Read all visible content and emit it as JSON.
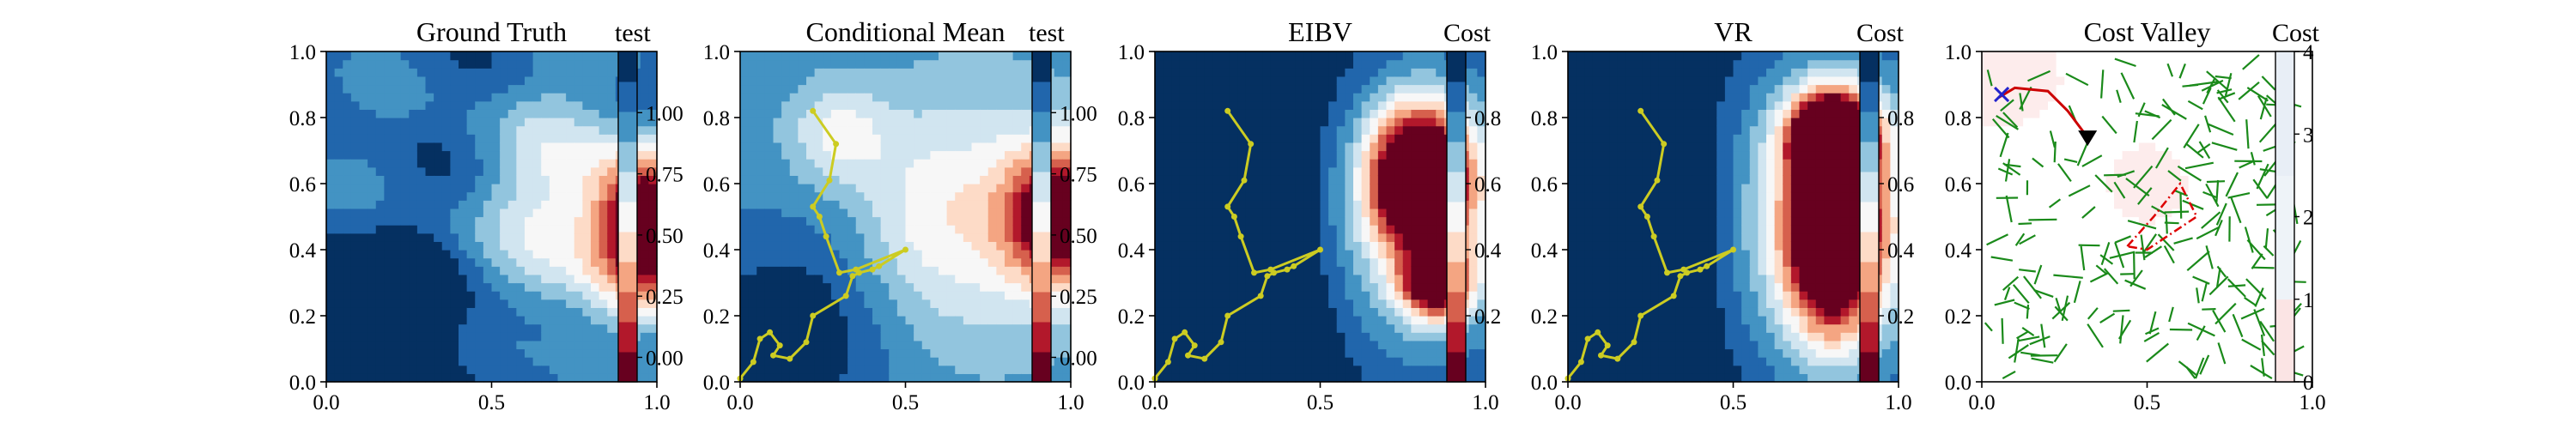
{
  "colors": {
    "cmap_rdbu": [
      "#67001f",
      "#b2182b",
      "#d6604d",
      "#f4a582",
      "#fddbc7",
      "#f7f7f7",
      "#d1e5f0",
      "#92c5de",
      "#4393c3",
      "#2166ac",
      "#053061"
    ],
    "cost_valley_bg": [
      "#ffffff",
      "#fdecec"
    ],
    "path": "#cccc22",
    "tree": "#1a8a1a",
    "route": "#cc0000",
    "boundary": "#dd0000",
    "start_marker": "#2222cc",
    "end_marker": "#000000"
  },
  "chart_data": [
    {
      "type": "heatmap",
      "title": "Ground Truth",
      "colorbar_label": "test",
      "xlim": [
        0,
        1
      ],
      "ylim": [
        0,
        1
      ],
      "x_ticks": [
        "0.0",
        "0.5",
        "1.0"
      ],
      "y_ticks": [
        "0.0",
        "0.2",
        "0.4",
        "0.6",
        "0.8",
        "1.0"
      ],
      "colorbar_range": [
        -0.1,
        1.25
      ],
      "colorbar_ticks": [
        "0.00",
        "0.25",
        "0.50",
        "0.75",
        "1.00"
      ],
      "colorbar_tick_values": [
        0.0,
        0.25,
        0.5,
        0.75,
        1.0
      ],
      "show_path": false
    },
    {
      "type": "heatmap",
      "title": "Conditional Mean",
      "colorbar_label": "test",
      "xlim": [
        0,
        1
      ],
      "ylim": [
        0,
        1
      ],
      "x_ticks": [
        "0.0",
        "0.5",
        "1.0"
      ],
      "y_ticks": [
        "0.0",
        "0.2",
        "0.4",
        "0.6",
        "0.8",
        "1.0"
      ],
      "colorbar_range": [
        -0.1,
        1.25
      ],
      "colorbar_ticks": [
        "0.00",
        "0.25",
        "0.50",
        "0.75",
        "1.00"
      ],
      "colorbar_tick_values": [
        0.0,
        0.25,
        0.5,
        0.75,
        1.0
      ],
      "show_path": true
    },
    {
      "type": "heatmap",
      "title": "EIBV",
      "colorbar_label": "Cost",
      "xlim": [
        0,
        1
      ],
      "ylim": [
        0,
        1
      ],
      "x_ticks": [
        "0.0",
        "0.5",
        "1.0"
      ],
      "y_ticks": [
        "0.0",
        "0.2",
        "0.4",
        "0.6",
        "0.8",
        "1.0"
      ],
      "colorbar_range": [
        0.0,
        1.0
      ],
      "colorbar_ticks": [
        "0.2",
        "0.4",
        "0.6",
        "0.8"
      ],
      "colorbar_tick_values": [
        0.2,
        0.4,
        0.6,
        0.8
      ],
      "show_path": true
    },
    {
      "type": "heatmap",
      "title": "VR",
      "colorbar_label": "Cost",
      "xlim": [
        0,
        1
      ],
      "ylim": [
        0,
        1
      ],
      "x_ticks": [
        "0.0",
        "0.5",
        "1.0"
      ],
      "y_ticks": [
        "0.0",
        "0.2",
        "0.4",
        "0.6",
        "0.8",
        "1.0"
      ],
      "colorbar_range": [
        0.0,
        1.0
      ],
      "colorbar_ticks": [
        "0.2",
        "0.4",
        "0.6",
        "0.8"
      ],
      "colorbar_tick_values": [
        0.2,
        0.4,
        0.6,
        0.8
      ],
      "show_path": true
    },
    {
      "type": "heatmap",
      "title": "Cost Valley",
      "colorbar_label": "Cost",
      "xlim": [
        0,
        1
      ],
      "ylim": [
        0,
        1
      ],
      "x_ticks": [
        "0.0",
        "0.5",
        "1.0"
      ],
      "y_ticks": [
        "0.0",
        "0.2",
        "0.4",
        "0.6",
        "0.8",
        "1.0"
      ],
      "colorbar_range": [
        0,
        4
      ],
      "colorbar_ticks": [
        "0",
        "1",
        "2",
        "3",
        "4"
      ],
      "colorbar_tick_values": [
        0,
        1,
        2,
        3,
        4
      ],
      "show_path": false,
      "route": [
        [
          0.05,
          0.86
        ],
        [
          0.1,
          0.89
        ],
        [
          0.2,
          0.88
        ],
        [
          0.26,
          0.82
        ],
        [
          0.32,
          0.74
        ]
      ],
      "start": [
        0.06,
        0.87
      ],
      "end": [
        0.32,
        0.74
      ],
      "boundary": [
        [
          0.44,
          0.41
        ],
        [
          0.52,
          0.5
        ],
        [
          0.6,
          0.6
        ],
        [
          0.65,
          0.5
        ],
        [
          0.56,
          0.44
        ],
        [
          0.5,
          0.4
        ],
        [
          0.44,
          0.41
        ]
      ]
    }
  ],
  "path_points": [
    [
      0.0,
      0.01
    ],
    [
      0.04,
      0.06
    ],
    [
      0.06,
      0.13
    ],
    [
      0.09,
      0.15
    ],
    [
      0.12,
      0.11
    ],
    [
      0.1,
      0.08
    ],
    [
      0.15,
      0.07
    ],
    [
      0.2,
      0.12
    ],
    [
      0.22,
      0.2
    ],
    [
      0.32,
      0.26
    ],
    [
      0.34,
      0.32
    ],
    [
      0.36,
      0.33
    ],
    [
      0.4,
      0.34
    ],
    [
      0.42,
      0.35
    ],
    [
      0.5,
      0.4
    ],
    [
      0.35,
      0.34
    ],
    [
      0.3,
      0.33
    ],
    [
      0.26,
      0.44
    ],
    [
      0.24,
      0.5
    ],
    [
      0.22,
      0.53
    ],
    [
      0.27,
      0.61
    ],
    [
      0.29,
      0.72
    ],
    [
      0.22,
      0.82
    ]
  ]
}
